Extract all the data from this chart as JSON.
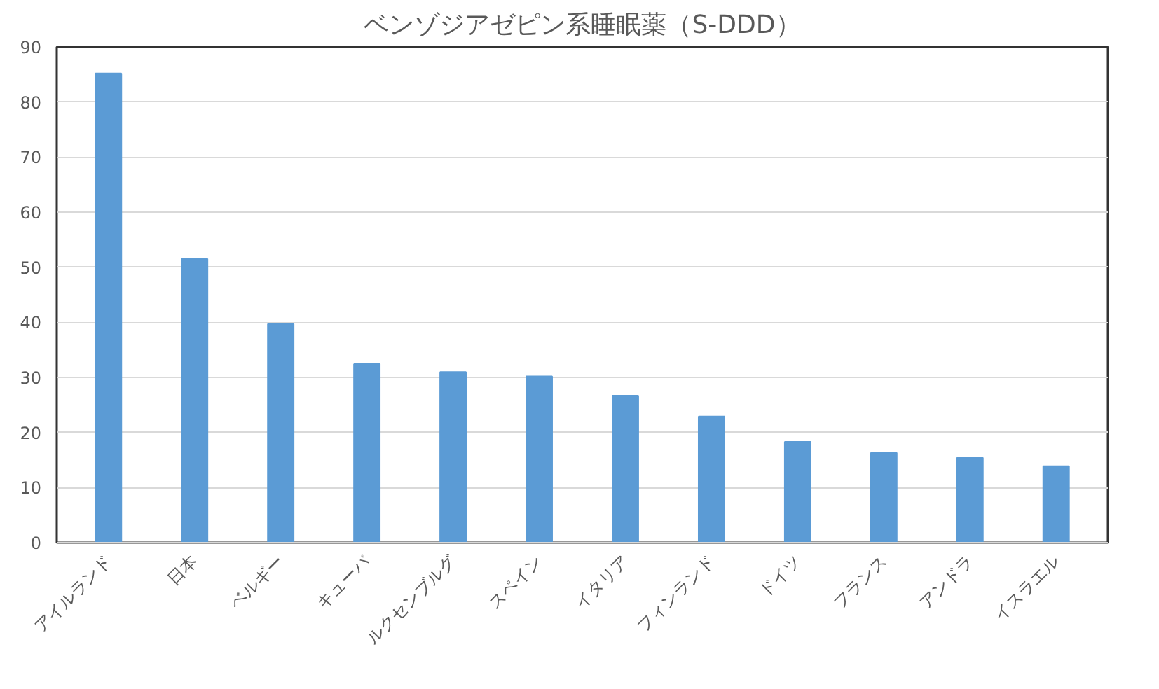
{
  "chart_data": {
    "type": "bar",
    "title": "ベンゾジアゼピン系睡眠薬（S-DDD）",
    "categories": [
      "アイルランド",
      "日本",
      "ベルギー",
      "キューバ",
      "ルクセンブルグ",
      "スペイン",
      "イタリア",
      "フィンランド",
      "ドイツ",
      "フランス",
      "アンドラ",
      "イスラエル"
    ],
    "values": [
      85.2,
      51.5,
      39.7,
      32.4,
      31.0,
      30.2,
      26.7,
      22.9,
      18.3,
      16.3,
      15.4,
      13.9
    ],
    "color": "#5b9bd5",
    "ylim": [
      0,
      90
    ],
    "yticks": [
      0,
      10,
      20,
      30,
      40,
      50,
      60,
      70,
      80,
      90
    ],
    "grid": "y"
  }
}
